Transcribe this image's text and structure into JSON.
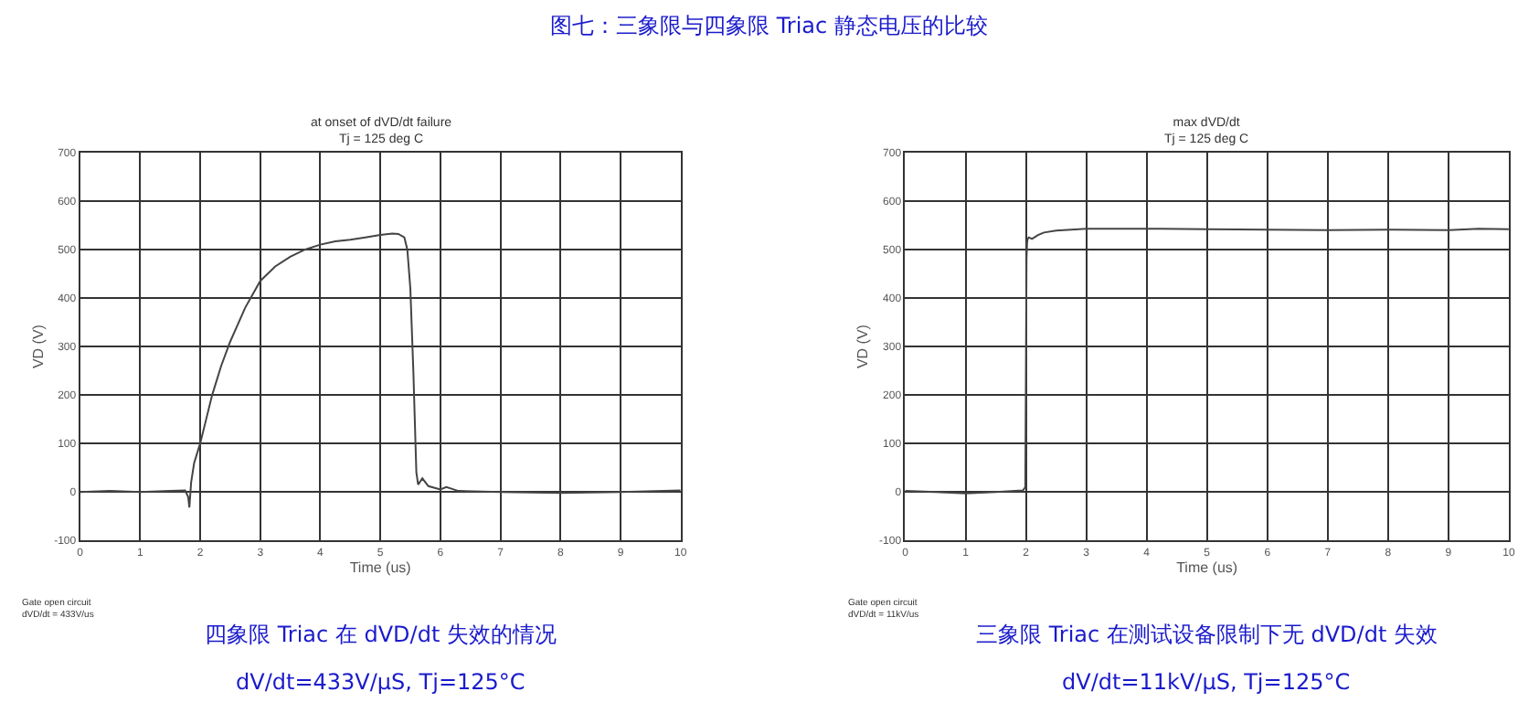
{
  "chart_data": [
    {
      "type": "line",
      "title": "图七：三象限与四象限 Triac 静态电压的比较",
      "subtitle": "at onset of dVD/dt failure\nTj = 125 deg C",
      "xlabel": "Time (us)",
      "ylabel": "VD (V)",
      "x": [
        0,
        0.5,
        1,
        1.5,
        1.75,
        1.8,
        1.82,
        1.85,
        1.9,
        2.0,
        2.1,
        2.2,
        2.35,
        2.5,
        2.75,
        3,
        3.25,
        3.5,
        3.75,
        4,
        4.25,
        4.5,
        4.75,
        5,
        5.2,
        5.3,
        5.4,
        5.45,
        5.5,
        5.55,
        5.6,
        5.63,
        5.7,
        5.8,
        6,
        6.1,
        6.3,
        7,
        8,
        9,
        10
      ],
      "series": [
        {
          "color": "#444444",
          "values": [
            0,
            2,
            0,
            2,
            3,
            -10,
            -32,
            20,
            60,
            100,
            150,
            200,
            260,
            310,
            380,
            435,
            465,
            485,
            500,
            510,
            517,
            520,
            525,
            530,
            533,
            532,
            525,
            500,
            420,
            250,
            40,
            15,
            28,
            12,
            5,
            10,
            2,
            0,
            -2,
            0,
            3
          ]
        }
      ],
      "xlim": [
        0,
        10
      ],
      "xticks": [
        0,
        1,
        2,
        3,
        4,
        5,
        6,
        7,
        8,
        9,
        10
      ],
      "ylim": [
        -100,
        700
      ],
      "yticks": [
        -100,
        0,
        100,
        200,
        300,
        400,
        500,
        600,
        700
      ],
      "grid": true,
      "annotations": [
        "Gate open circuit\ndVD/dt = 433V/us",
        "四象限 Triac 在 dVD/dt 失效的情况",
        "dV/dt=433V/μS, Tj=125°C"
      ]
    },
    {
      "type": "line",
      "subtitle": "max dVD/dt\nTj = 125 deg C",
      "xlabel": "Time (us)",
      "ylabel": "VD (V)",
      "x": [
        0,
        0.5,
        1,
        1.5,
        1.95,
        1.99,
        2.0,
        2.01,
        2.02,
        2.03,
        2.05,
        2.1,
        2.2,
        2.3,
        2.5,
        2.75,
        3,
        4,
        5,
        6,
        7,
        8,
        9,
        9.5,
        10
      ],
      "series": [
        {
          "color": "#444444",
          "values": [
            2,
            0,
            -3,
            0,
            3,
            10,
            232,
            480,
            515,
            522,
            525,
            522,
            530,
            535,
            539,
            541,
            543,
            543,
            542,
            541,
            540,
            541,
            540,
            543,
            542
          ]
        }
      ],
      "xlim": [
        0,
        10
      ],
      "xticks": [
        0,
        1,
        2,
        3,
        4,
        5,
        6,
        7,
        8,
        9,
        10
      ],
      "ylim": [
        -100,
        700
      ],
      "yticks": [
        -100,
        0,
        100,
        200,
        300,
        400,
        500,
        600,
        700
      ],
      "grid": true,
      "annotations": [
        "Gate open circuit\ndVD/dt = 11kV/us",
        "三象限 Triac 在测试设备限制下无 dVD/dt 失效",
        "dV/dt=11kV/μS, Tj=125°C"
      ]
    }
  ]
}
